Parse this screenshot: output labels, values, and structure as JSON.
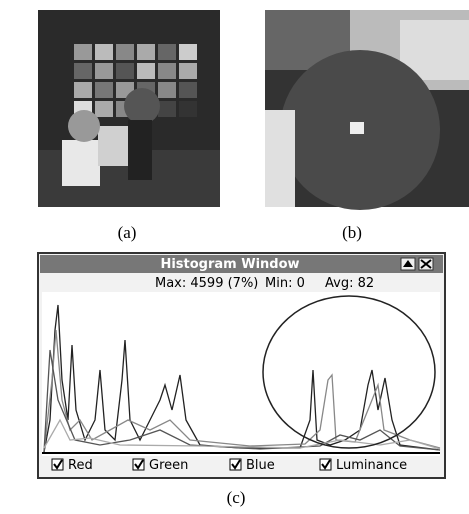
{
  "panels": [
    {
      "label": "(a)"
    },
    {
      "label": "(b)"
    },
    {
      "label": "(c)"
    }
  ],
  "window": {
    "title": "Histogram Window",
    "stats": [
      "Max: 4599 (7%)",
      "Min: 0",
      "Avg: 82"
    ],
    "checkboxes": [
      "Red",
      "Green",
      "Blue",
      "Luminance"
    ]
  }
}
